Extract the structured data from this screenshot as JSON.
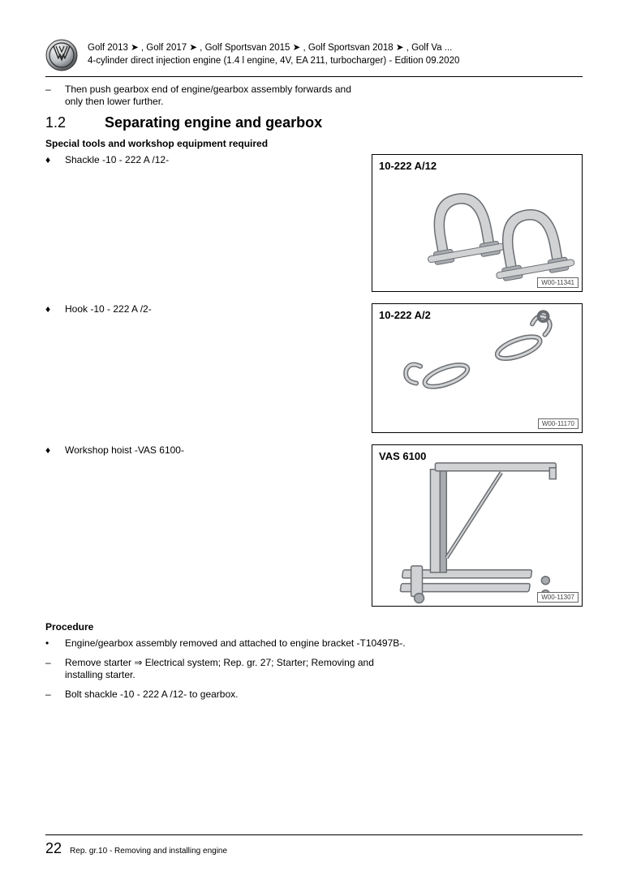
{
  "header": {
    "line1": "Golf 2013 ➤ , Golf 2017 ➤ , Golf Sportsvan 2015 ➤ , Golf Sportsvan 2018 ➤ , Golf Va ...",
    "line2": "4-cylinder direct injection engine (1.4 l engine, 4V, EA 211, turbocharger) - Edition 09.2020"
  },
  "intro_dash": "Then push gearbox end of engine/gearbox assembly forwards and only then lower further.",
  "section": {
    "number": "1.2",
    "title": "Separating engine and gearbox"
  },
  "tools_heading": "Special tools and workshop equipment required",
  "tools": [
    {
      "text": "Shackle -10 - 222 A /12-",
      "fig_label": "10-222 A/12",
      "fig_id": "W00-11341",
      "fig_h": 170,
      "kind": "shackle"
    },
    {
      "text": "Hook -10 - 222 A /2-",
      "fig_label": "10-222 A/2",
      "fig_id": "W00-11170",
      "fig_h": 160,
      "kind": "hook"
    },
    {
      "text": "Workshop hoist -VAS 6100-",
      "fig_label": "VAS 6100",
      "fig_id": "W00-11307",
      "fig_h": 200,
      "kind": "hoist"
    }
  ],
  "procedure_heading": "Procedure",
  "procedure": [
    {
      "marker": "•",
      "text": "Engine/gearbox assembly removed and attached to engine bracket -T10497B-."
    },
    {
      "marker": "–",
      "text": "Remove starter ⇒ Electrical system; Rep. gr. 27; Starter; Removing and installing starter."
    },
    {
      "marker": "–",
      "text": "Bolt shackle -10 - 222 A /12- to gearbox."
    }
  ],
  "footer": {
    "page": "22",
    "text": "Rep. gr.10 - Removing and installing engine"
  },
  "colors": {
    "part_fill": "#d0d2d4",
    "part_stroke": "#6b6e72",
    "part_dark": "#a8abaf"
  }
}
